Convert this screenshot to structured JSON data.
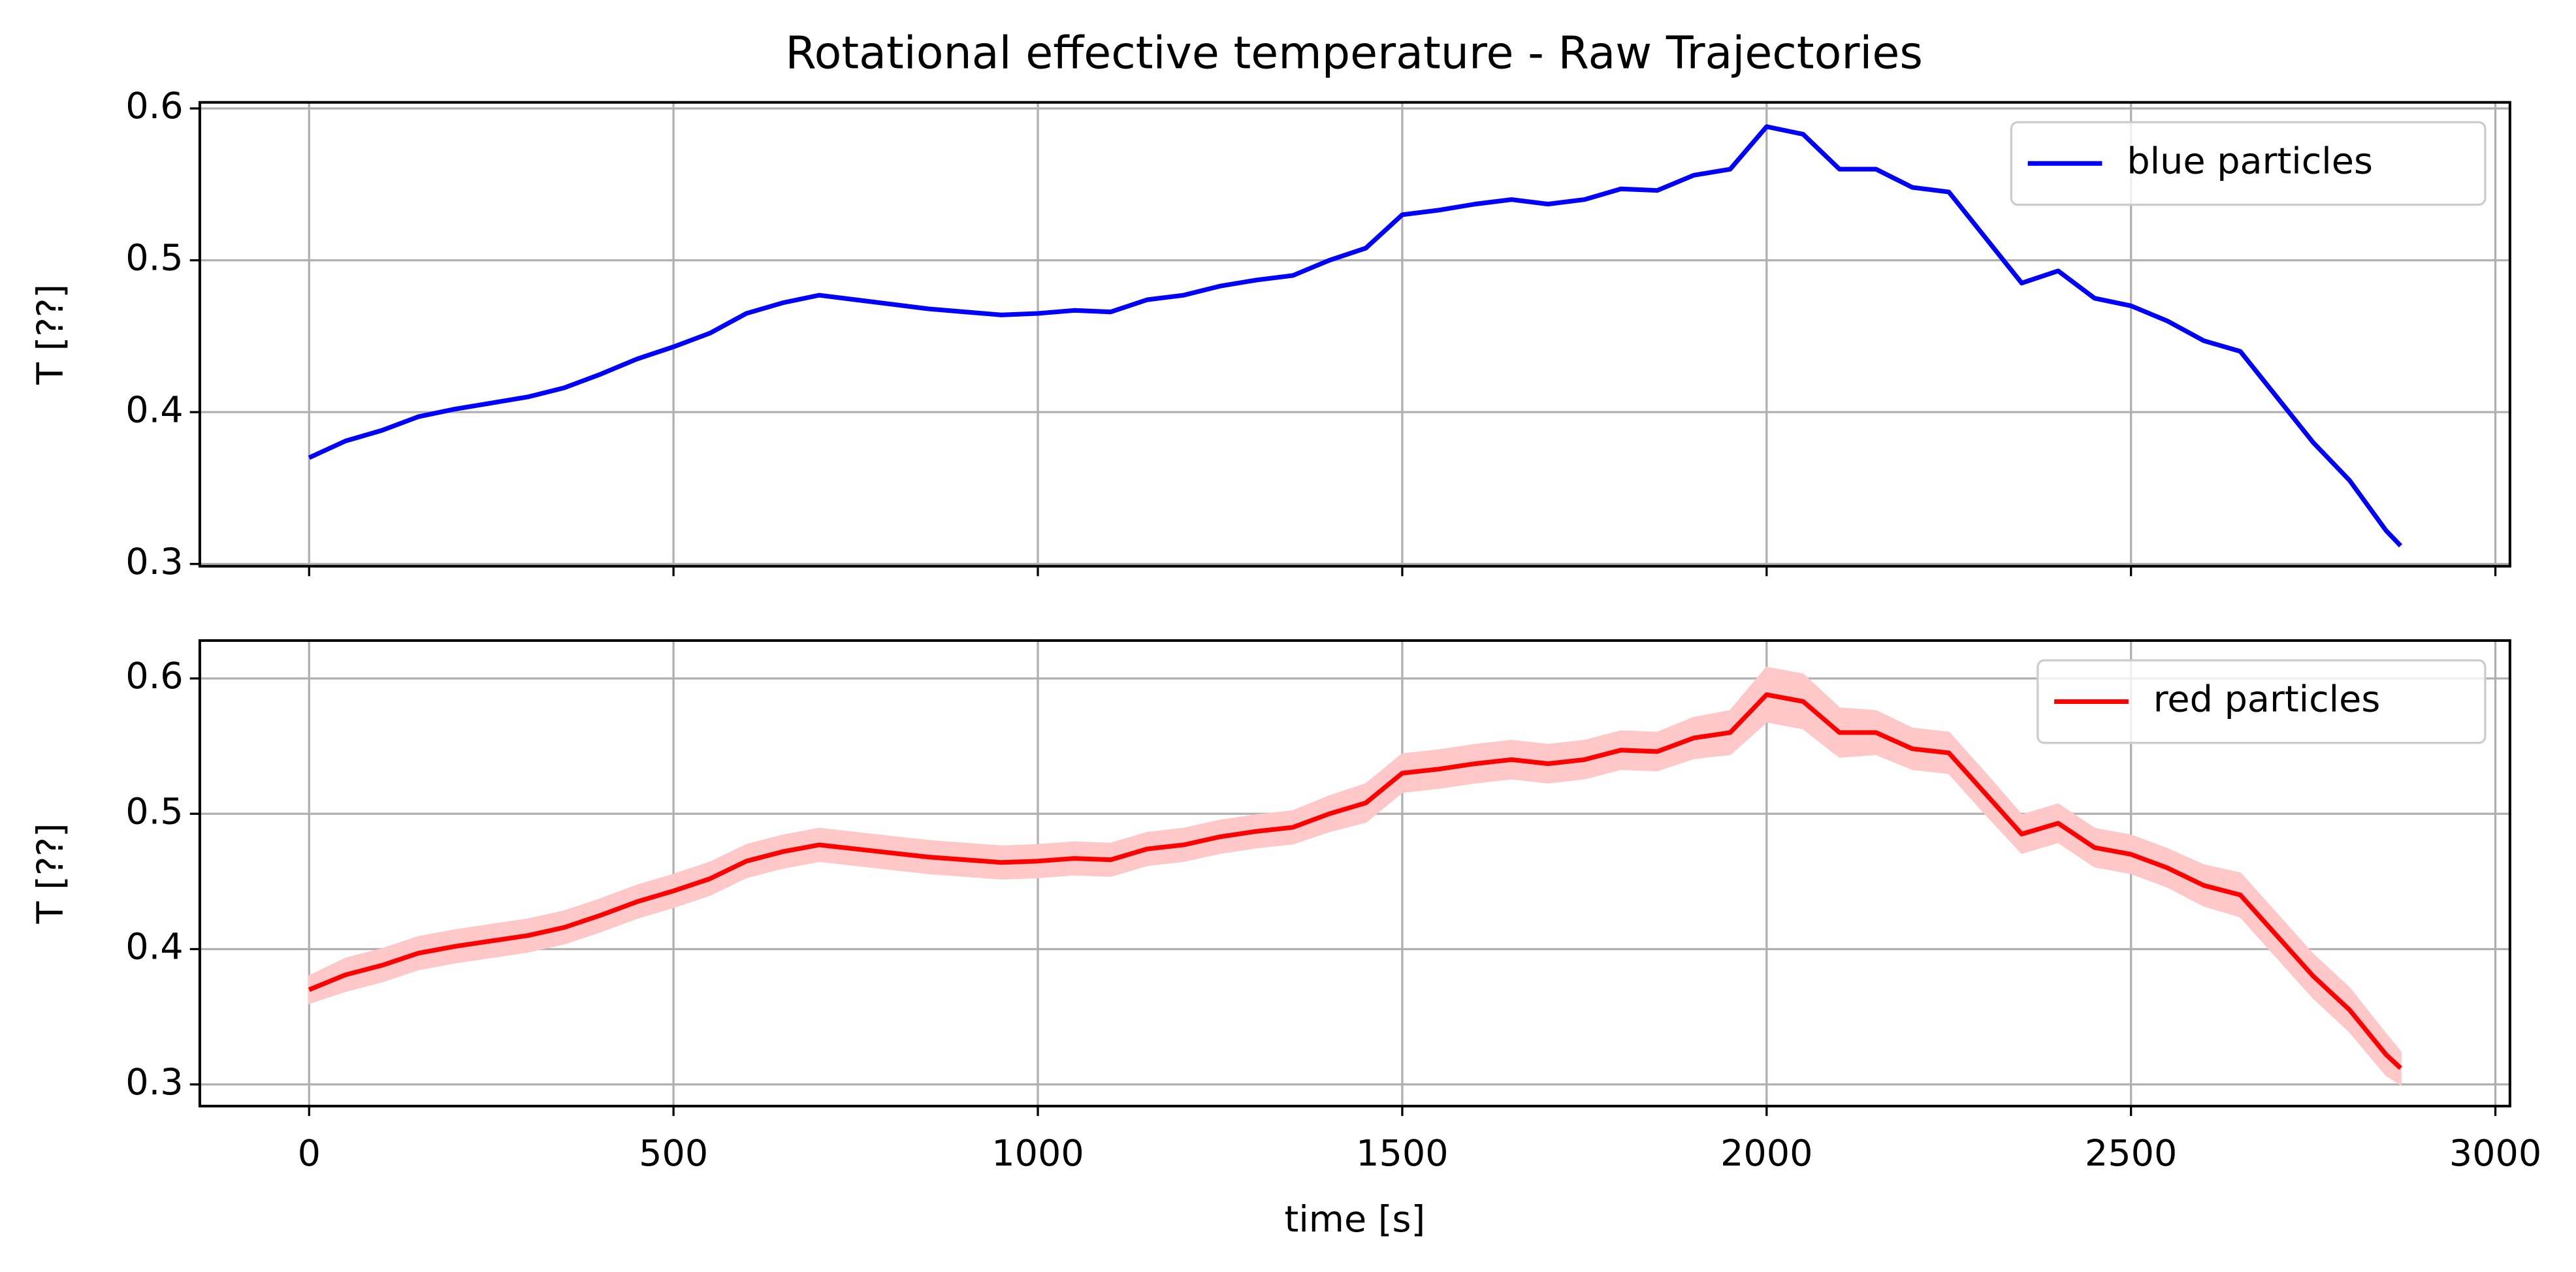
{
  "title": "Rotational effective temperature - Raw Trajectories",
  "chart_data": [
    {
      "type": "line",
      "ylabel": "T [??]",
      "x": [
        0,
        50,
        100,
        150,
        200,
        250,
        300,
        350,
        400,
        450,
        500,
        550,
        600,
        650,
        700,
        750,
        800,
        850,
        900,
        950,
        1000,
        1050,
        1100,
        1150,
        1200,
        1250,
        1300,
        1350,
        1400,
        1450,
        1500,
        1550,
        1600,
        1650,
        1700,
        1750,
        1800,
        1850,
        1900,
        1950,
        2000,
        2050,
        2100,
        2150,
        2200,
        2250,
        2300,
        2350,
        2400,
        2450,
        2500,
        2550,
        2600,
        2650,
        2700,
        2750,
        2800,
        2850,
        2870
      ],
      "series": [
        {
          "name": "blue particles",
          "color": "#0000ff",
          "values": [
            0.37,
            0.381,
            0.388,
            0.397,
            0.402,
            0.406,
            0.41,
            0.416,
            0.425,
            0.435,
            0.443,
            0.452,
            0.465,
            0.472,
            0.477,
            0.474,
            0.471,
            0.468,
            0.466,
            0.464,
            0.465,
            0.467,
            0.466,
            0.474,
            0.477,
            0.483,
            0.487,
            0.49,
            0.5,
            0.508,
            0.53,
            0.533,
            0.537,
            0.54,
            0.537,
            0.54,
            0.547,
            0.546,
            0.556,
            0.56,
            0.588,
            0.583,
            0.56,
            0.56,
            0.548,
            0.545,
            0.515,
            0.485,
            0.493,
            0.475,
            0.47,
            0.46,
            0.447,
            0.44,
            0.41,
            0.38,
            0.355,
            0.322,
            0.312
          ]
        }
      ],
      "xlim": [
        -150,
        3020
      ],
      "xticks": [
        0,
        500,
        1000,
        1500,
        2000,
        2500,
        3000
      ],
      "show_xtick_labels": false,
      "ylim": [
        0.2985,
        0.604
      ],
      "yticks": [
        0.3,
        0.4,
        0.5,
        0.6
      ],
      "grid": true,
      "legend": "upper right"
    },
    {
      "type": "line",
      "ylabel": "T [??]",
      "xlabel": "time [s]",
      "x": [
        0,
        50,
        100,
        150,
        200,
        250,
        300,
        350,
        400,
        450,
        500,
        550,
        600,
        650,
        700,
        750,
        800,
        850,
        900,
        950,
        1000,
        1050,
        1100,
        1150,
        1200,
        1250,
        1300,
        1350,
        1400,
        1450,
        1500,
        1550,
        1600,
        1650,
        1700,
        1750,
        1800,
        1850,
        1900,
        1950,
        2000,
        2050,
        2100,
        2150,
        2200,
        2250,
        2300,
        2350,
        2400,
        2450,
        2500,
        2550,
        2600,
        2650,
        2700,
        2750,
        2800,
        2850,
        2870
      ],
      "series": [
        {
          "name": "red particles",
          "color": "#ff0000",
          "band_color": "#ffc8c8",
          "values": [
            0.37,
            0.381,
            0.388,
            0.397,
            0.402,
            0.406,
            0.41,
            0.416,
            0.425,
            0.435,
            0.443,
            0.452,
            0.465,
            0.472,
            0.477,
            0.474,
            0.471,
            0.468,
            0.466,
            0.464,
            0.465,
            0.467,
            0.466,
            0.474,
            0.477,
            0.483,
            0.487,
            0.49,
            0.5,
            0.508,
            0.53,
            0.533,
            0.537,
            0.54,
            0.537,
            0.54,
            0.547,
            0.546,
            0.556,
            0.56,
            0.588,
            0.583,
            0.56,
            0.56,
            0.548,
            0.545,
            0.515,
            0.485,
            0.493,
            0.475,
            0.47,
            0.46,
            0.447,
            0.44,
            0.41,
            0.38,
            0.355,
            0.322,
            0.312
          ],
          "error": [
            0.01,
            0.012,
            0.012,
            0.012,
            0.012,
            0.012,
            0.012,
            0.012,
            0.012,
            0.012,
            0.012,
            0.012,
            0.012,
            0.012,
            0.012,
            0.012,
            0.012,
            0.012,
            0.012,
            0.012,
            0.012,
            0.012,
            0.012,
            0.012,
            0.012,
            0.012,
            0.012,
            0.012,
            0.013,
            0.014,
            0.014,
            0.014,
            0.014,
            0.014,
            0.014,
            0.014,
            0.014,
            0.014,
            0.015,
            0.016,
            0.02,
            0.02,
            0.018,
            0.016,
            0.015,
            0.015,
            0.015,
            0.014,
            0.014,
            0.014,
            0.014,
            0.014,
            0.015,
            0.016,
            0.016,
            0.016,
            0.016,
            0.015,
            0.012
          ]
        }
      ],
      "xlim": [
        -150,
        3020
      ],
      "xticks": [
        0,
        500,
        1000,
        1500,
        2000,
        2500,
        3000
      ],
      "show_xtick_labels": true,
      "ylim": [
        0.284,
        0.628
      ],
      "yticks": [
        0.3,
        0.4,
        0.5,
        0.6
      ],
      "grid": true,
      "legend": "upper right"
    }
  ]
}
